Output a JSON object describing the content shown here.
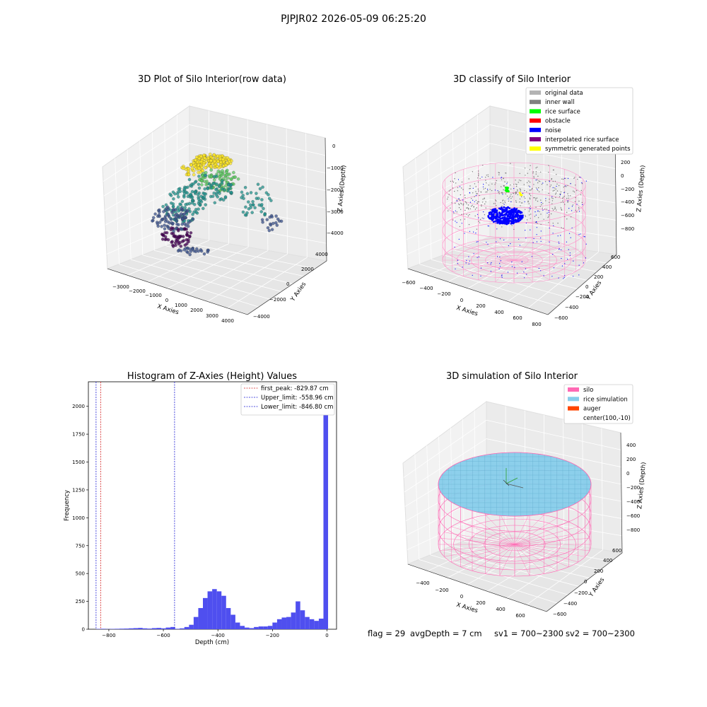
{
  "figure": {
    "suptitle": "PJPJR02 2026-05-09 06:25:20",
    "footer": {
      "flag": "flag = 29",
      "avg_depth": "avgDepth = 7 cm",
      "sv1": "sv1 = 700~2300",
      "sv2": "sv2 = 700~2300"
    }
  },
  "chart_data": [
    {
      "type": "scatter",
      "projection": "3d",
      "title": "3D Plot of Silo Interior(row data)",
      "xlabel": "X Axies",
      "ylabel": "Y Axies",
      "zlabel": "Z Axies (Depth)",
      "x_ticks": [
        "−3000",
        "−2000",
        "−1000",
        "0",
        "1000",
        "2000",
        "3000",
        "4000"
      ],
      "y_ticks": [
        "−4000",
        "−2000",
        "0",
        "2000",
        "4000"
      ],
      "z_ticks": [
        "0",
        "−1000",
        "−2000",
        "−3000",
        "−4000"
      ],
      "colormap": "viridis",
      "note_points": "dense cloud of points colored by depth"
    },
    {
      "type": "scatter",
      "projection": "3d",
      "title": "3D classify of Silo Interior",
      "xlabel": "X Axies",
      "ylabel": "Y Axies",
      "zlabel": "Z Axies (Depth)",
      "x_ticks": [
        "−600",
        "−400",
        "−200",
        "0",
        "200",
        "400",
        "600",
        "800"
      ],
      "y_ticks": [
        "−600",
        "−400",
        "−200",
        "0",
        "200",
        "400",
        "600"
      ],
      "z_ticks": [
        "200",
        "0",
        "−200",
        "−400",
        "−600",
        "−800"
      ],
      "legend_position": "top-right",
      "legend": [
        {
          "name": "original data",
          "color": "#b3b3b3"
        },
        {
          "name": "inner wall",
          "color": "#808080"
        },
        {
          "name": "rice surface",
          "color": "#00ff00"
        },
        {
          "name": "obstacle",
          "color": "#ff0000"
        },
        {
          "name": "noise",
          "color": "#0000ff"
        },
        {
          "name": "interpolated rice surface",
          "color": "#800080"
        },
        {
          "name": "symmetric generated points",
          "color": "#ffff00"
        }
      ]
    },
    {
      "type": "bar",
      "title": "Histogram of Z-Axies (Height) Values",
      "xlabel": "Depth (cm)",
      "ylabel": "Frequency",
      "xlim": [
        -875,
        35
      ],
      "ylim": [
        0,
        2220
      ],
      "x_ticks": [
        {
          "value": -800,
          "label": "−800"
        },
        {
          "value": -600,
          "label": "−600"
        },
        {
          "value": -400,
          "label": "−400"
        },
        {
          "value": -200,
          "label": "−200"
        },
        {
          "value": 0,
          "label": "0"
        }
      ],
      "y_ticks": [
        {
          "value": 0,
          "label": "0"
        },
        {
          "value": 250,
          "label": "250"
        },
        {
          "value": 500,
          "label": "500"
        },
        {
          "value": 750,
          "label": "750"
        },
        {
          "value": 1000,
          "label": "1000"
        },
        {
          "value": 1250,
          "label": "1250"
        },
        {
          "value": 1500,
          "label": "1500"
        },
        {
          "value": 1750,
          "label": "1750"
        },
        {
          "value": 2000,
          "label": "2000"
        }
      ],
      "bin_width": 17,
      "bins_start": [
        -846,
        -829,
        -812,
        -795,
        -778,
        -761,
        -744,
        -727,
        -710,
        -693,
        -676,
        -659,
        -642,
        -625,
        -608,
        -591,
        -574,
        -557,
        -540,
        -523,
        -506,
        -489,
        -472,
        -455,
        -438,
        -421,
        -404,
        -387,
        -370,
        -353,
        -336,
        -319,
        -302,
        -285,
        -268,
        -251,
        -234,
        -217,
        -200,
        -183,
        -166,
        -149,
        -132,
        -115,
        -98,
        -81,
        -64,
        -47,
        -30,
        -13
      ],
      "values": [
        3,
        4,
        2,
        3,
        4,
        5,
        6,
        8,
        10,
        12,
        8,
        6,
        10,
        12,
        8,
        15,
        20,
        4,
        8,
        20,
        40,
        110,
        190,
        280,
        340,
        360,
        340,
        300,
        190,
        130,
        60,
        30,
        15,
        10,
        20,
        25,
        25,
        30,
        60,
        90,
        105,
        110,
        150,
        250,
        170,
        110,
        90,
        75,
        95,
        2160
      ],
      "bar_color": "#4f4fef",
      "lines": [
        {
          "name": "first_peak: -829.87 cm",
          "x": -829.87,
          "color": "#d62728"
        },
        {
          "name": "Upper_limit: -558.96 cm",
          "x": -558.96,
          "color": "#1f1fd6"
        },
        {
          "name": "Lower_limit: -846.80 cm",
          "x": -846.8,
          "color": "#1f1fd6"
        }
      ],
      "legend_position": "top-right"
    },
    {
      "type": "surface",
      "projection": "3d",
      "title": "3D simulation of Silo Interior",
      "xlabel": "X Axies",
      "ylabel": "Y Axies",
      "zlabel": "Z Axies (Depth)",
      "x_ticks": [
        "−400",
        "−200",
        "0",
        "200",
        "400",
        "600"
      ],
      "y_ticks": [
        "−600",
        "−400",
        "−200",
        "0",
        "200",
        "400",
        "600"
      ],
      "z_ticks": [
        "400",
        "200",
        "0",
        "−200",
        "−400",
        "−600",
        "−800"
      ],
      "legend_position": "top-right",
      "legend": [
        {
          "name": "silo",
          "color": "#ff69b4"
        },
        {
          "name": "rice simulation",
          "color": "#87ceeb"
        },
        {
          "name": "auger",
          "color": "#ff4500"
        },
        {
          "name": "center(100,-10)",
          "color": ""
        }
      ]
    }
  ]
}
